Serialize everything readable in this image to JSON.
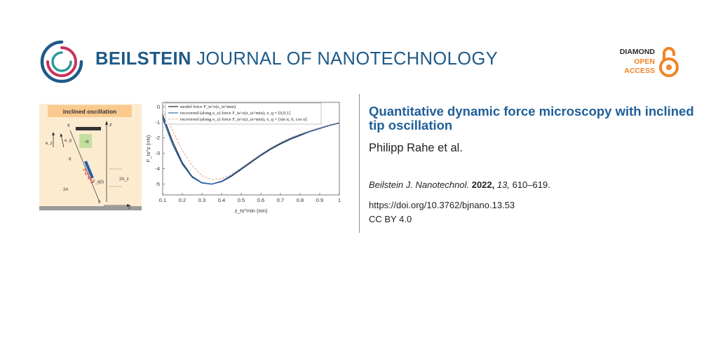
{
  "header": {
    "journal_name_bold": "BEILSTEIN",
    "journal_name_rest": " JOURNAL OF NANOTECHNOLOGY",
    "logo_icon": "beilstein-swirl-icon",
    "badge": {
      "line1": "DIAMOND",
      "line2": "OPEN",
      "line3": "ACCESS",
      "icon": "open-lock-icon"
    },
    "colors": {
      "brand_blue": "#1e5a88",
      "accent_orange": "#f08323",
      "title_blue": "#1f5f98"
    }
  },
  "schematic": {
    "heading": "inclined oscillation",
    "labels": {
      "ez": "e_z",
      "eq": "e_q",
      "alpha": "-α",
      "q_top": "q",
      "q_axis": "q",
      "z_axis": "z",
      "x_axis": "x",
      "two_a": "2A",
      "two_az": "2A_z",
      "fq": "F_q(t)",
      "zero": "0"
    }
  },
  "chart_data": {
    "type": "line",
    "x": [
      0.1,
      0.15,
      0.2,
      0.25,
      0.3,
      0.35,
      0.4,
      0.45,
      0.5,
      0.55,
      0.6,
      0.65,
      0.7,
      0.75,
      0.8,
      0.85,
      0.9,
      0.95,
      1.0
    ],
    "series": [
      {
        "name": "model force",
        "color": "#111111",
        "dash": false,
        "values": [
          -0.5,
          -2.2,
          -3.6,
          -4.5,
          -4.9,
          -5.0,
          -4.85,
          -4.5,
          -4.05,
          -3.6,
          -3.15,
          -2.75,
          -2.4,
          -2.1,
          -1.85,
          -1.6,
          -1.4,
          -1.2,
          -1.05
        ]
      },
      {
        "name": "recovered (along e_z) force",
        "color": "#1f5fa8",
        "dash": false,
        "values": [
          -0.7,
          -2.4,
          -3.7,
          -4.55,
          -4.92,
          -5.0,
          -4.82,
          -4.45,
          -4.0,
          -3.55,
          -3.1,
          -2.7,
          -2.35,
          -2.05,
          -1.8,
          -1.58,
          -1.38,
          -1.18,
          -1.03
        ]
      },
      {
        "name": "recovered (along e_z) force, e_q = [sin α, 0, cos α]",
        "color": "#f0a080",
        "dash": true,
        "values": [
          -0.2,
          -1.5,
          -2.8,
          -3.8,
          -4.45,
          -4.7,
          -4.65,
          -4.35,
          -3.95,
          -3.5,
          -3.05,
          -2.65,
          -2.3,
          -2.0,
          -1.75,
          -1.53,
          -1.34,
          -1.16,
          -1.0
        ]
      }
    ],
    "legend": [
      "model force F_ts^z(z_ts^min)",
      "recovered (along e_z) force F_ts^z(z_ts^min), e_q = [0,0,1]",
      "recovered (along e_z) force F_ts^z(z_ts^min), e_q = [sin α, 0, cos α]"
    ],
    "xlabel": "z_ts^min (nm)",
    "ylabel": "F_ts^z (nN)",
    "xticks": [
      "0.1",
      "0.2",
      "0.3",
      "0.4",
      "0.5",
      "0.6",
      "0.7",
      "0.8",
      "0.9",
      "1"
    ],
    "yticks": [
      "0",
      "-1",
      "-2",
      "-3",
      "-4",
      "-5"
    ],
    "xlim": [
      0.1,
      1.0
    ],
    "ylim": [
      -5.7,
      0.3
    ],
    "legend_position": "top",
    "grid": false
  },
  "article": {
    "title": "Quantitative dynamic force microscopy with inclined tip oscillation",
    "authors": "Philipp Rahe et al.",
    "citation_journal": "Beilstein J. Nanotechnol.",
    "citation_year": "2022,",
    "citation_volume": "13,",
    "citation_pages": "610–619.",
    "doi": "https://doi.org/10.3762/bjnano.13.53",
    "license": "CC BY 4.0"
  }
}
